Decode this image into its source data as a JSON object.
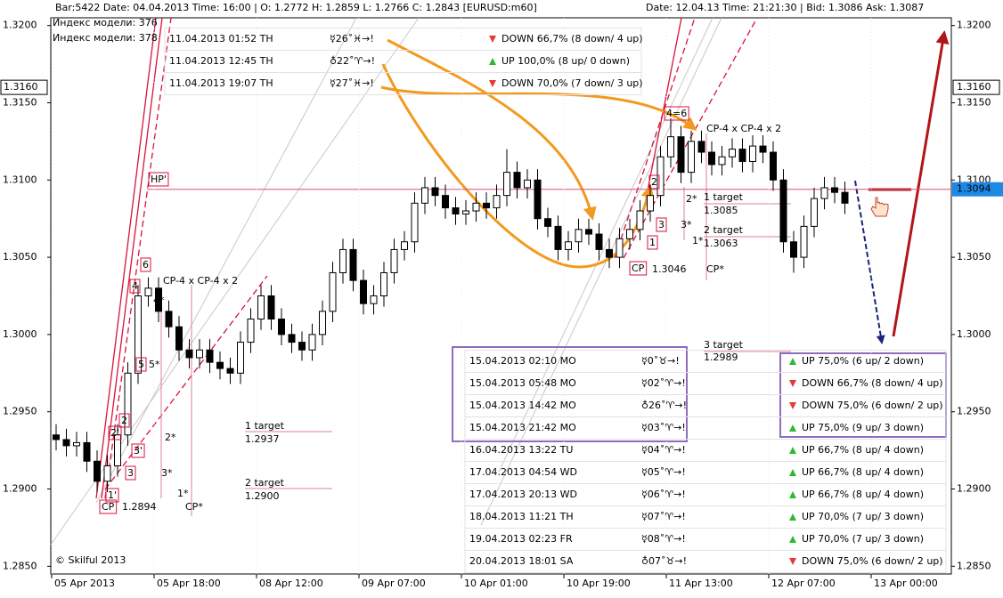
{
  "chart_data": {
    "type": "candlestick",
    "header_left": "Bar:5422  Date:  04.04.2013  Time:  16:00  |  O:  1.2772  H:  1.2859  L:  1.2766  C:  1.2843   [EURUSD:m60]",
    "header_right": "Date:  12.04.13  Time:  21:21:30  |  Bid:  1.3086  Ask:  1.3087",
    "model_index": [
      "Индекс модели: 376",
      "Индекс модели: 378"
    ],
    "ylim": [
      1.2845,
      1.3205
    ],
    "yticks": [
      {
        "value": 1.285,
        "label": "1.2850"
      },
      {
        "value": 1.29,
        "label": "1.2900"
      },
      {
        "value": 1.295,
        "label": "1.2950"
      },
      {
        "value": 1.3,
        "label": "1.3000"
      },
      {
        "value": 1.305,
        "label": "1.3050"
      },
      {
        "value": 1.31,
        "label": "1.3100"
      },
      {
        "value": 1.315,
        "label": "1.3150"
      },
      {
        "value": 1.32,
        "label": "1.3200"
      }
    ],
    "level_marks": [
      {
        "value": 1.316,
        "label": "1.3160"
      }
    ],
    "price_line": {
      "value": 1.3094,
      "label": "1.3094"
    },
    "xlabels": [
      "05 Apr 2013",
      "05 Apr 18:00",
      "08 Apr 12:00",
      "09 Apr 07:00",
      "10 Apr 01:00",
      "10 Apr 19:00",
      "11 Apr 13:00",
      "12 Apr 07:00",
      "13 Apr 00:00"
    ],
    "open": [
      1.2935,
      1.2932,
      1.2928,
      1.293,
      1.2918,
      1.2905,
      1.2915,
      1.2935,
      1.2975,
      1.3025,
      1.303,
      1.3015,
      1.3005,
      1.299,
      1.2985,
      1.299,
      1.2982,
      1.2978,
      1.2975,
      1.2995,
      1.301,
      1.3025,
      1.301,
      1.3,
      1.2995,
      1.299,
      1.3,
      1.3015,
      1.304,
      1.3055,
      1.3035,
      1.302,
      1.3025,
      1.304,
      1.3055,
      1.306,
      1.3085,
      1.3095,
      1.309,
      1.3082,
      1.3078,
      1.308,
      1.3085,
      1.3082,
      1.309,
      1.3105,
      1.3095,
      1.31,
      1.3075,
      1.307,
      1.3055,
      1.306,
      1.3068,
      1.3065,
      1.3055,
      1.305,
      1.3062,
      1.3068,
      1.308,
      1.309,
      1.3115,
      1.3128,
      1.3105,
      1.3125,
      1.3118,
      1.311,
      1.3115,
      1.312,
      1.3112,
      1.3122,
      1.3118,
      1.31,
      1.306,
      1.305,
      1.307,
      1.3088,
      1.3095,
      1.3092
    ],
    "high": [
      1.2942,
      1.2939,
      1.2937,
      1.2937,
      1.2925,
      1.2922,
      1.2942,
      1.2982,
      1.3032,
      1.3037,
      1.3037,
      1.3022,
      1.3012,
      1.2997,
      1.2997,
      1.2997,
      1.2989,
      1.2985,
      1.3002,
      1.3017,
      1.3032,
      1.3032,
      1.3017,
      1.3007,
      1.3002,
      1.3007,
      1.3022,
      1.3047,
      1.3062,
      1.3062,
      1.3042,
      1.3032,
      1.3047,
      1.3062,
      1.3067,
      1.3092,
      1.3102,
      1.3102,
      1.3097,
      1.3089,
      1.3087,
      1.3092,
      1.3092,
      1.3097,
      1.312,
      1.3112,
      1.3107,
      1.3107,
      1.3082,
      1.3077,
      1.3067,
      1.3075,
      1.3075,
      1.3072,
      1.3062,
      1.3069,
      1.3075,
      1.3087,
      1.3097,
      1.3122,
      1.314,
      1.3135,
      1.3132,
      1.3132,
      1.3125,
      1.3122,
      1.3127,
      1.3127,
      1.3129,
      1.3129,
      1.3125,
      1.3107,
      1.3067,
      1.3077,
      1.3095,
      1.3102,
      1.3102,
      1.3099
    ],
    "low": [
      1.2925,
      1.2921,
      1.2921,
      1.2911,
      1.2898,
      1.2898,
      1.2908,
      1.2928,
      1.2968,
      1.3018,
      1.3008,
      1.2998,
      1.2983,
      1.2978,
      1.2978,
      1.2975,
      1.2971,
      1.2968,
      1.2968,
      1.2988,
      1.3003,
      1.3003,
      1.2993,
      1.2988,
      1.2983,
      1.2983,
      1.2993,
      1.3008,
      1.3033,
      1.3028,
      1.3013,
      1.3013,
      1.3018,
      1.3033,
      1.3048,
      1.3053,
      1.3078,
      1.3083,
      1.3075,
      1.3071,
      1.3071,
      1.3073,
      1.3075,
      1.3075,
      1.3083,
      1.3088,
      1.3088,
      1.3068,
      1.3063,
      1.3048,
      1.3048,
      1.3053,
      1.3058,
      1.3048,
      1.3043,
      1.3043,
      1.3055,
      1.3061,
      1.3073,
      1.3083,
      1.3108,
      1.3098,
      1.3098,
      1.3111,
      1.3103,
      1.3103,
      1.3108,
      1.3105,
      1.3105,
      1.3111,
      1.3093,
      1.3053,
      1.304,
      1.3043,
      1.3063,
      1.3081,
      1.3085,
      1.3078
    ],
    "close": [
      1.2932,
      1.2928,
      1.293,
      1.2918,
      1.2905,
      1.2915,
      1.2935,
      1.2975,
      1.3025,
      1.303,
      1.3015,
      1.3005,
      1.299,
      1.2985,
      1.299,
      1.2982,
      1.2978,
      1.2975,
      1.2995,
      1.301,
      1.3025,
      1.301,
      1.3,
      1.2995,
      1.299,
      1.3,
      1.3015,
      1.304,
      1.3055,
      1.3035,
      1.302,
      1.3025,
      1.304,
      1.3055,
      1.306,
      1.3085,
      1.3095,
      1.309,
      1.3082,
      1.3078,
      1.308,
      1.3085,
      1.3082,
      1.309,
      1.3105,
      1.3095,
      1.31,
      1.3075,
      1.307,
      1.3055,
      1.306,
      1.3068,
      1.3065,
      1.3055,
      1.305,
      1.3062,
      1.3068,
      1.308,
      1.309,
      1.3115,
      1.3128,
      1.3105,
      1.3125,
      1.3118,
      1.311,
      1.3115,
      1.312,
      1.3112,
      1.3122,
      1.3118,
      1.31,
      1.306,
      1.305,
      1.307,
      1.3088,
      1.3095,
      1.3092,
      1.3085
    ],
    "annotations": [
      "HP'",
      "CP-4 x CP-4 x 2",
      "CP-4 x CP-4 x 2",
      "6",
      "4",
      "4*",
      "5",
      "5*",
      "2",
      "2'",
      "3'",
      "3",
      "1'",
      "CP",
      "1.2894",
      "2*",
      "3*",
      "1*",
      "CP*",
      "1 target",
      "1.2937",
      "2 target",
      "1.2900",
      "4=6",
      "2",
      "3",
      "1",
      "CP",
      "1.3046",
      "2*",
      "3*",
      "1*",
      "CP*",
      "1 target",
      "1.3085",
      "2 target",
      "1.3063",
      "3 target",
      "1.2989",
      "© Skilful 2013"
    ],
    "signals_top": [
      {
        "time": "11.04.2013  01:52 TH",
        "aspect": "☿26˚♓→!",
        "forecast": "DOWN   66,7%  (8 down/ 4 up)"
      },
      {
        "time": "11.04.2013  12:45 TH",
        "aspect": "♁22˚♈→!",
        "forecast": "UP   100,0% (8 up/ 0 down)"
      },
      {
        "time": "11.04.2013  19:07 TH",
        "aspect": "☿27˚♓→!",
        "forecast": "DOWN   70,0%  (7 down/ 3 up)"
      }
    ],
    "signals_bottom": [
      {
        "time": "15.04.2013  02:10 MO",
        "aspect": "☿0˚♉→!",
        "forecast": "UP   75,0% (6 up/ 2 down)"
      },
      {
        "time": "15.04.2013  05:48 MO",
        "aspect": "☿02˚♈→!",
        "forecast": "DOWN   66,7%  (8 down/ 4 up)"
      },
      {
        "time": "15.04.2013  14:42 MO",
        "aspect": "♁26˚♈→!",
        "forecast": "DOWN   75,0%  (6 down/ 2 up)"
      },
      {
        "time": "15.04.2013  21:42 MO",
        "aspect": "☿03˚♈→!",
        "forecast": "UP   75,0% (9 up/ 3 down)"
      },
      {
        "time": "16.04.2013  13:22 TU",
        "aspect": "☿04˚♈→!",
        "forecast": "UP   66,7% (8 up/ 4 down)"
      },
      {
        "time": "17.04.2013  04:54 WD",
        "aspect": "☿05˚♈→!",
        "forecast": "UP   66,7% (8 up/ 4 down)"
      },
      {
        "time": "17.04.2013  20:13 WD",
        "aspect": "☿06˚♈→!",
        "forecast": "UP   66,7% (8 up/ 4 down)"
      },
      {
        "time": "18.04.2013  11:21 TH",
        "aspect": "☿07˚♈→!",
        "forecast": "UP   70,0% (7 up/ 3 down)"
      },
      {
        "time": "19.04.2013  02:23 FR",
        "aspect": "☿08˚♈→!",
        "forecast": "UP   70,0% (7 up/ 3 down)"
      },
      {
        "time": "20.04.2013  18:01 SA",
        "aspect": "♁07˚♉→!",
        "forecast": "DOWN   75,0%  (6 down/ 2 up)"
      }
    ]
  }
}
